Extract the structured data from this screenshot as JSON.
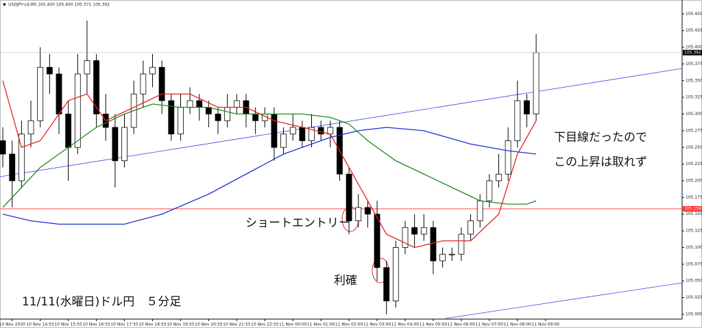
{
  "chart_data": {
    "type": "candlestick",
    "title": "USDJPY-cd,M5  105.400 105.400 105.371 105.392",
    "open": [
      105.26,
      105.24,
      105.2,
      105.27,
      105.29,
      105.37,
      105.36,
      105.3,
      105.25,
      105.36,
      105.38,
      105.3,
      105.28,
      105.23,
      105.28,
      105.33,
      105.36,
      105.37,
      105.32,
      105.27,
      105.31,
      105.32,
      105.31,
      105.3,
      105.29,
      105.31,
      105.32,
      105.3,
      105.29,
      105.3,
      105.25,
      105.27,
      105.28,
      105.26,
      105.28,
      105.27,
      105.28,
      105.21,
      105.14,
      105.16,
      105.15,
      105.07,
      105.02,
      105.1,
      105.13,
      105.12,
      105.13,
      105.08,
      105.09,
      105.09,
      105.12,
      105.14,
      105.17,
      105.2,
      105.21,
      105.26,
      105.32,
      105.3
    ],
    "high": [
      105.28,
      105.26,
      105.29,
      105.32,
      105.4,
      105.39,
      105.37,
      105.32,
      105.39,
      105.44,
      105.39,
      105.33,
      105.3,
      105.3,
      105.35,
      105.38,
      105.39,
      105.38,
      105.33,
      105.33,
      105.34,
      105.33,
      105.32,
      105.31,
      105.33,
      105.33,
      105.33,
      105.31,
      105.31,
      105.31,
      105.28,
      105.3,
      105.29,
      105.3,
      105.29,
      105.29,
      105.29,
      105.22,
      105.18,
      105.17,
      105.17,
      105.08,
      105.11,
      105.14,
      105.15,
      105.15,
      105.14,
      105.1,
      105.1,
      105.13,
      105.15,
      105.18,
      105.21,
      105.24,
      105.28,
      105.35,
      105.33,
      105.42
    ],
    "low": [
      105.22,
      105.16,
      105.19,
      105.25,
      105.28,
      105.33,
      105.27,
      105.2,
      105.24,
      105.33,
      105.28,
      105.26,
      105.19,
      105.22,
      105.27,
      105.31,
      105.34,
      105.3,
      105.26,
      105.26,
      105.3,
      105.29,
      105.28,
      105.27,
      105.28,
      105.3,
      105.28,
      105.27,
      105.28,
      105.23,
      105.24,
      105.26,
      105.25,
      105.25,
      105.26,
      105.25,
      105.2,
      105.12,
      105.13,
      105.13,
      105.05,
      105.0,
      105.01,
      105.09,
      105.1,
      105.11,
      105.06,
      105.07,
      105.08,
      105.08,
      105.11,
      105.13,
      105.16,
      105.19,
      105.2,
      105.25,
      105.28,
      105.29
    ],
    "close": [
      105.24,
      105.2,
      105.27,
      105.29,
      105.37,
      105.36,
      105.3,
      105.25,
      105.36,
      105.38,
      105.3,
      105.28,
      105.23,
      105.28,
      105.33,
      105.36,
      105.37,
      105.32,
      105.27,
      105.31,
      105.32,
      105.31,
      105.3,
      105.29,
      105.31,
      105.32,
      105.3,
      105.29,
      105.3,
      105.25,
      105.27,
      105.28,
      105.26,
      105.28,
      105.27,
      105.28,
      105.21,
      105.14,
      105.16,
      105.15,
      105.07,
      105.02,
      105.1,
      105.13,
      105.12,
      105.13,
      105.08,
      105.09,
      105.09,
      105.12,
      105.14,
      105.17,
      105.2,
      105.21,
      105.26,
      105.32,
      105.3,
      105.392
    ],
    "series": [
      {
        "color": "#e8201e",
        "x": [
          0,
          2,
          4,
          7,
          9,
          11,
          14,
          17,
          20,
          23,
          26,
          29,
          32,
          35,
          37,
          39,
          41,
          44,
          47,
          50,
          53,
          55,
          57
        ],
        "values": [
          105.35,
          105.25,
          105.26,
          105.32,
          105.33,
          105.29,
          105.31,
          105.33,
          105.33,
          105.31,
          105.31,
          105.29,
          105.28,
          105.27,
          105.22,
          105.17,
          105.12,
          105.1,
          105.11,
          105.11,
          105.15,
          105.24,
          105.29
        ]
      },
      {
        "color": "#1a8a1a",
        "x": [
          0,
          2,
          4,
          7,
          10,
          13,
          16,
          19,
          22,
          25,
          29,
          32,
          35,
          37,
          39,
          42,
          45,
          48,
          51,
          54,
          56,
          57
        ],
        "values": [
          105.16,
          105.19,
          105.22,
          105.25,
          105.28,
          105.3,
          105.315,
          105.31,
          105.31,
          105.3,
          105.3,
          105.3,
          105.295,
          105.285,
          105.26,
          105.23,
          105.21,
          105.19,
          105.17,
          105.165,
          105.165,
          105.17
        ]
      },
      {
        "color": "#1a2fd8",
        "x": [
          0,
          3,
          6,
          13,
          17,
          22,
          26,
          30,
          35,
          38,
          41,
          45,
          50,
          54,
          57
        ],
        "values": [
          105.15,
          105.14,
          105.135,
          105.135,
          105.15,
          105.18,
          105.21,
          105.24,
          105.265,
          105.275,
          105.28,
          105.275,
          105.255,
          105.245,
          105.24
        ]
      }
    ],
    "xlim": [
      -0.3,
      72.6
    ],
    "ylim": [
      104.9928,
      105.4708
    ],
    "xticks": [
      {
        "value": 1,
        "label": "10 Nov 2020"
      },
      {
        "value": 4,
        "label": "10 Nov 14:55"
      },
      {
        "value": 7,
        "label": "10 Nov 15:55"
      },
      {
        "value": 10,
        "label": "10 Nov 16:55"
      },
      {
        "value": 13,
        "label": "10 Nov 17:55"
      },
      {
        "value": 16,
        "label": "10 Nov 18:55"
      },
      {
        "value": 19,
        "label": "10 Nov 19:55"
      },
      {
        "value": 22,
        "label": "10 Nov 20:55"
      },
      {
        "value": 25,
        "label": "10 Nov 21:55"
      },
      {
        "value": 28,
        "label": "10 Nov 22:55"
      },
      {
        "value": 31,
        "label": "11 Nov 00:00"
      },
      {
        "value": 34,
        "label": "11 Nov 01:00"
      },
      {
        "value": 37,
        "label": "11 Nov 02:00"
      },
      {
        "value": 40,
        "label": "11 Nov 03:00"
      },
      {
        "value": 43,
        "label": "11 Nov 04:00"
      },
      {
        "value": 46,
        "label": "11 Nov 05:00"
      },
      {
        "value": 49,
        "label": "11 Nov 06:00"
      },
      {
        "value": 52,
        "label": "11 Nov 07:00"
      },
      {
        "value": 55,
        "label": "11 Nov 08:00"
      },
      {
        "value": 58,
        "label": "11 Nov 09:00"
      }
    ],
    "yticks": [
      {
        "value": 105.0,
        "label": "105.000"
      },
      {
        "value": 105.025,
        "label": "105.025"
      },
      {
        "value": 105.05,
        "label": "105.050"
      },
      {
        "value": 105.075,
        "label": "105.075"
      },
      {
        "value": 105.1,
        "label": "105.100"
      },
      {
        "value": 105.125,
        "label": "105.125"
      },
      {
        "value": 105.15,
        "label": "105.150"
      },
      {
        "value": 105.175,
        "label": "105.175"
      },
      {
        "value": 105.2,
        "label": "105.200"
      },
      {
        "value": 105.225,
        "label": "105.225"
      },
      {
        "value": 105.25,
        "label": "105.250"
      },
      {
        "value": 105.275,
        "label": "105.275"
      },
      {
        "value": 105.3,
        "label": "105.300"
      },
      {
        "value": 105.325,
        "label": "105.325"
      },
      {
        "value": 105.35,
        "label": "105.350"
      },
      {
        "value": 105.375,
        "label": "105.375"
      },
      {
        "value": 105.4,
        "label": "105.400"
      },
      {
        "value": 105.425,
        "label": "105.425"
      },
      {
        "value": 105.45,
        "label": "105.450"
      }
    ],
    "hline": {
      "value": 105.158,
      "label": "105.158",
      "color": "#ff3030"
    },
    "last_price": {
      "value": 105.392,
      "label": "105.392"
    },
    "annotations": [
      "下目線だったので",
      "この上昇は取れず",
      "ショートエントリー",
      "利確",
      "11/11(水曜日)ドル円　５分足"
    ]
  }
}
